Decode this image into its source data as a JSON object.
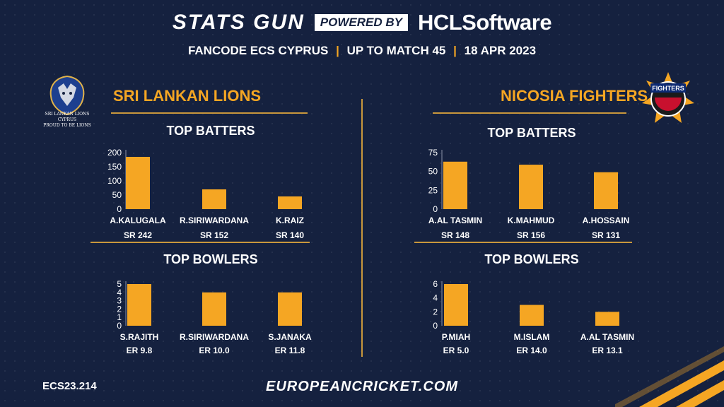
{
  "header": {
    "brand": "STATS GUN",
    "powered_by": "POWERED BY",
    "sponsor": "HCLSoftware",
    "subtitle_parts": [
      "FANCODE ECS CYPRUS",
      "UP TO MATCH  45",
      "18 APR 2023"
    ],
    "separator": "|"
  },
  "teams": {
    "left": {
      "name": "SRI LANKAN LIONS",
      "logo_text": [
        "SRI LANKAN LIONS",
        "CYPRUS",
        "PROUD TO BE LIONS"
      ]
    },
    "right": {
      "name": "NICOSIA FIGHTERS",
      "logo_text": "NICOSIA FIGHTERS"
    }
  },
  "sections": {
    "batters": "TOP BATTERS",
    "bowlers": "TOP BOWLERS"
  },
  "footer": {
    "code": "ECS23.214",
    "url": "EUROPEANCRICKET.COM"
  },
  "colors": {
    "bar": "#f5a623",
    "accent": "#c9973c",
    "background": "#15213f"
  },
  "chart_data": [
    {
      "type": "bar",
      "title": "TOP BATTERS",
      "team": "SRI LANKAN LIONS",
      "categories": [
        "A.KALUGALA",
        "R.SIRIWARDANA",
        "K.RAIZ"
      ],
      "values": [
        185,
        70,
        45
      ],
      "sub_labels": [
        "SR 242",
        "SR 152",
        "SR 140"
      ],
      "ylim": [
        0,
        200
      ],
      "yticks": [
        0,
        50,
        100,
        150,
        200
      ]
    },
    {
      "type": "bar",
      "title": "TOP BOWLERS",
      "team": "SRI LANKAN LIONS",
      "categories": [
        "S.RAJITH",
        "R.SIRIWARDANA",
        "S.JANAKA"
      ],
      "values": [
        5,
        4,
        4
      ],
      "sub_labels": [
        "ER 9.8",
        "ER 10.0",
        "ER 11.8"
      ],
      "ylim": [
        0,
        5
      ],
      "yticks": [
        0,
        1,
        2,
        3,
        4,
        5
      ]
    },
    {
      "type": "bar",
      "title": "TOP BATTERS",
      "team": "NICOSIA FIGHTERS",
      "categories": [
        "A.AL TASMIN",
        "K.MAHMUD",
        "A.HOSSAIN"
      ],
      "values": [
        63,
        59,
        49
      ],
      "sub_labels": [
        "SR 148",
        "SR 156",
        "SR 131"
      ],
      "ylim": [
        0,
        75
      ],
      "yticks": [
        0,
        25,
        50,
        75
      ]
    },
    {
      "type": "bar",
      "title": "TOP BOWLERS",
      "team": "NICOSIA FIGHTERS",
      "categories": [
        "P.MIAH",
        "M.ISLAM",
        "A.AL TASMIN"
      ],
      "values": [
        6,
        3,
        2
      ],
      "sub_labels": [
        "ER 5.0",
        "ER 14.0",
        "ER 13.1"
      ],
      "ylim": [
        0,
        6
      ],
      "yticks": [
        0,
        2,
        4,
        6
      ]
    }
  ]
}
